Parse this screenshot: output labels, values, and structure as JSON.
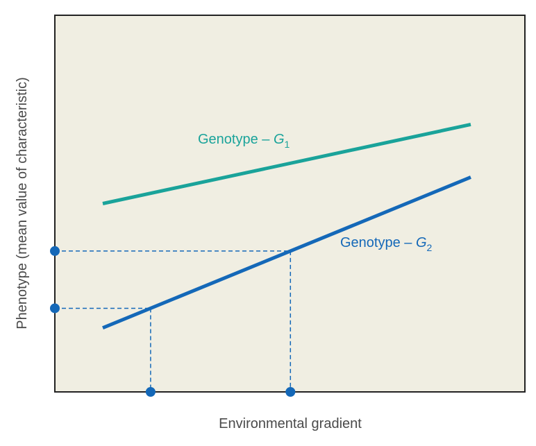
{
  "chart_data": {
    "type": "line",
    "title": "",
    "xlabel": "Environmental gradient",
    "ylabel": "Phenotype (mean value of characteristic)",
    "xlim": [
      0,
      10
    ],
    "ylim": [
      0,
      10
    ],
    "x_ticks_shown": false,
    "y_ticks_shown": false,
    "grid": false,
    "background_color": "#f0eee2",
    "series": [
      {
        "name": "Genotype – G1",
        "label_text": "Genotype – G",
        "label_subscript": "1",
        "color": "#1aa39a",
        "x": [
          1.3,
          11.3
        ],
        "y": [
          5.0,
          7.1
        ]
      },
      {
        "name": "Genotype – G2",
        "label_text": "Genotype – G",
        "label_subscript": "2",
        "color": "#1468b8",
        "x": [
          1.3,
          11.3
        ],
        "y": [
          1.7,
          5.7
        ]
      }
    ],
    "reference_guides": {
      "color": "#1468b8",
      "style": "dashed",
      "on_series": "Genotype – G2",
      "points": [
        {
          "x": 2.6,
          "y": 2.3
        },
        {
          "x": 6.4,
          "y": 3.8
        }
      ]
    }
  }
}
